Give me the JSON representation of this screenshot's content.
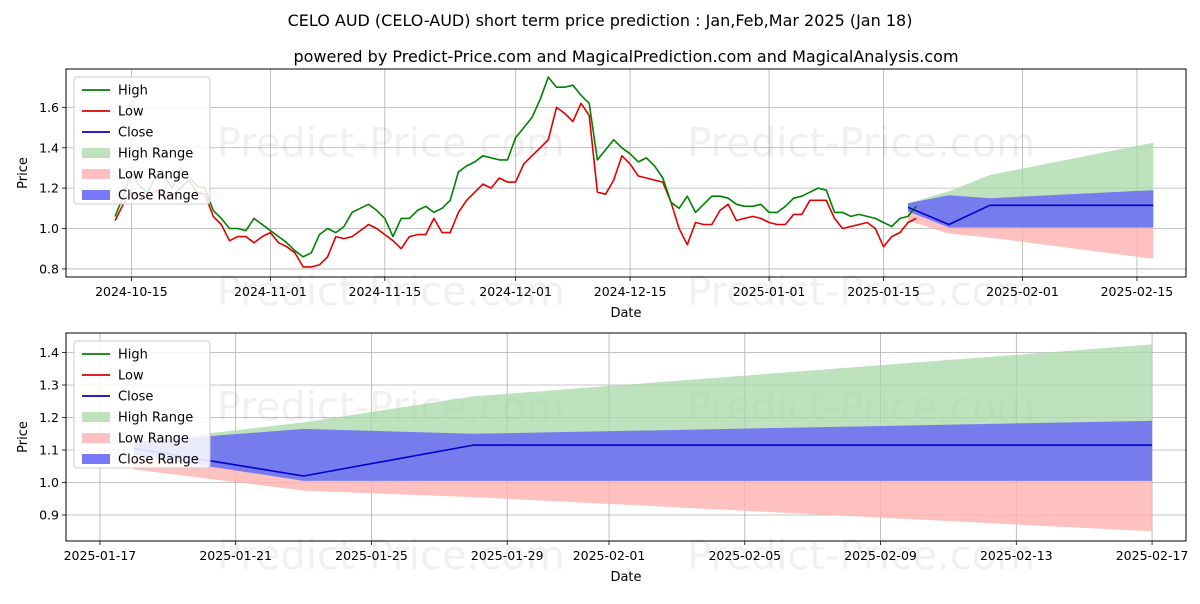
{
  "title": "CELO AUD (CELO-AUD) short term price prediction : Jan,Feb,Mar 2025 (Jan 18)",
  "subtitle": "powered by Predict-Price.com and MagicalPrediction.com and MagicalAnalysis.com",
  "watermark": "Predict-Price.com",
  "colors": {
    "high": "#008000",
    "low": "#e00000",
    "close": "#0000cc",
    "high_range": "#a8d8a8",
    "low_range": "#ffb0b0",
    "close_range": "#6a6af5",
    "grid": "#b0b0b0"
  },
  "chart_data": [
    {
      "type": "line",
      "name": "full-history-and-forecast",
      "xlabel": "Date",
      "ylabel": "Price",
      "x_start": "2024-10-07",
      "x_end": "2025-02-21",
      "ylim": [
        0.76,
        1.79
      ],
      "x_ticks": [
        "2024-10-15",
        "2024-11-01",
        "2024-11-15",
        "2024-12-01",
        "2024-12-15",
        "2025-01-01",
        "2025-01-15",
        "2025-02-01",
        "2025-02-15"
      ],
      "y_ticks": [
        0.8,
        1.0,
        1.2,
        1.4,
        1.6
      ],
      "legend": [
        "High",
        "Low",
        "Close",
        "High Range",
        "Low Range",
        "Close Range"
      ],
      "legend_position": "upper-left",
      "history_start": "2024-10-13",
      "history_high": [
        1.06,
        1.16,
        1.28,
        1.21,
        1.18,
        1.26,
        1.26,
        1.2,
        1.3,
        1.26,
        1.21,
        1.2,
        1.09,
        1.05,
        1.0,
        1.0,
        0.99,
        1.05,
        1.02,
        0.99,
        0.96,
        0.93,
        0.89,
        0.86,
        0.88,
        0.97,
        1.0,
        0.98,
        1.01,
        1.08,
        1.1,
        1.12,
        1.09,
        1.05,
        0.96,
        1.05,
        1.05,
        1.09,
        1.11,
        1.08,
        1.1,
        1.14,
        1.28,
        1.31,
        1.33,
        1.36,
        1.35,
        1.34,
        1.34,
        1.45,
        1.5,
        1.55,
        1.64,
        1.75,
        1.7,
        1.7,
        1.71,
        1.66,
        1.62,
        1.34,
        1.39,
        1.44,
        1.4,
        1.37,
        1.33,
        1.35,
        1.31,
        1.25,
        1.13,
        1.1,
        1.16,
        1.08,
        1.12,
        1.16,
        1.16,
        1.15,
        1.12,
        1.11,
        1.11,
        1.12,
        1.08,
        1.08,
        1.11,
        1.15,
        1.16,
        1.18,
        1.2,
        1.19,
        1.08,
        1.08,
        1.06,
        1.07,
        1.06,
        1.05,
        1.03,
        1.01,
        1.05,
        1.06,
        1.11
      ],
      "history_low": [
        1.04,
        1.12,
        1.18,
        1.16,
        1.15,
        1.19,
        1.16,
        1.16,
        1.2,
        1.24,
        1.18,
        1.17,
        1.06,
        1.02,
        0.94,
        0.96,
        0.96,
        0.93,
        0.96,
        0.98,
        0.93,
        0.91,
        0.88,
        0.81,
        0.81,
        0.82,
        0.86,
        0.96,
        0.95,
        0.96,
        0.99,
        1.02,
        1.0,
        0.97,
        0.94,
        0.9,
        0.96,
        0.97,
        0.97,
        1.05,
        0.98,
        0.98,
        1.08,
        1.14,
        1.18,
        1.22,
        1.2,
        1.25,
        1.23,
        1.23,
        1.32,
        1.36,
        1.4,
        1.44,
        1.6,
        1.57,
        1.53,
        1.62,
        1.56,
        1.18,
        1.17,
        1.24,
        1.36,
        1.32,
        1.26,
        1.25,
        1.24,
        1.23,
        1.13,
        1.0,
        0.92,
        1.03,
        1.02,
        1.02,
        1.09,
        1.12,
        1.04,
        1.05,
        1.06,
        1.05,
        1.03,
        1.02,
        1.02,
        1.07,
        1.07,
        1.14,
        1.14,
        1.14,
        1.05,
        1.0,
        1.01,
        1.02,
        1.03,
        1.0,
        0.91,
        0.96,
        0.98,
        1.03,
        1.05
      ],
      "forecast_dates": [
        "2025-01-18",
        "2025-01-23",
        "2025-01-28",
        "2025-02-17"
      ],
      "close_forecast": [
        1.105,
        1.02,
        1.115,
        1.115
      ],
      "close_range_upper": [
        1.125,
        1.165,
        1.15,
        1.19
      ],
      "close_range_lower": [
        1.085,
        1.005,
        1.005,
        1.005
      ],
      "high_range_upper": [
        1.125,
        1.185,
        1.265,
        1.425
      ],
      "high_range_lower": [
        1.085,
        1.005,
        1.005,
        1.005
      ],
      "low_range_upper": [
        1.085,
        1.005,
        1.005,
        1.005
      ],
      "low_range_lower": [
        1.04,
        0.975,
        0.955,
        0.85
      ]
    },
    {
      "type": "line",
      "name": "forecast-zoom",
      "xlabel": "Date",
      "ylabel": "Price",
      "x_start": "2025-01-16",
      "x_end": "2025-02-18",
      "ylim": [
        0.82,
        1.46
      ],
      "x_ticks": [
        "2025-01-17",
        "2025-01-21",
        "2025-01-25",
        "2025-01-29",
        "2025-02-01",
        "2025-02-05",
        "2025-02-09",
        "2025-02-13",
        "2025-02-17"
      ],
      "y_ticks": [
        0.9,
        1.0,
        1.1,
        1.2,
        1.3,
        1.4
      ],
      "legend": [
        "High",
        "Low",
        "Close",
        "High Range",
        "Low Range",
        "Close Range"
      ],
      "legend_position": "upper-left",
      "forecast_dates": [
        "2025-01-18",
        "2025-01-23",
        "2025-01-28",
        "2025-02-17"
      ],
      "close_forecast": [
        1.105,
        1.02,
        1.115,
        1.115
      ],
      "close_range_upper": [
        1.125,
        1.165,
        1.15,
        1.19
      ],
      "close_range_lower": [
        1.085,
        1.005,
        1.005,
        1.005
      ],
      "high_range_upper": [
        1.125,
        1.185,
        1.265,
        1.425
      ],
      "high_range_lower": [
        1.085,
        1.005,
        1.005,
        1.005
      ],
      "low_range_upper": [
        1.085,
        1.005,
        1.005,
        1.005
      ],
      "low_range_lower": [
        1.04,
        0.975,
        0.955,
        0.85
      ]
    }
  ]
}
